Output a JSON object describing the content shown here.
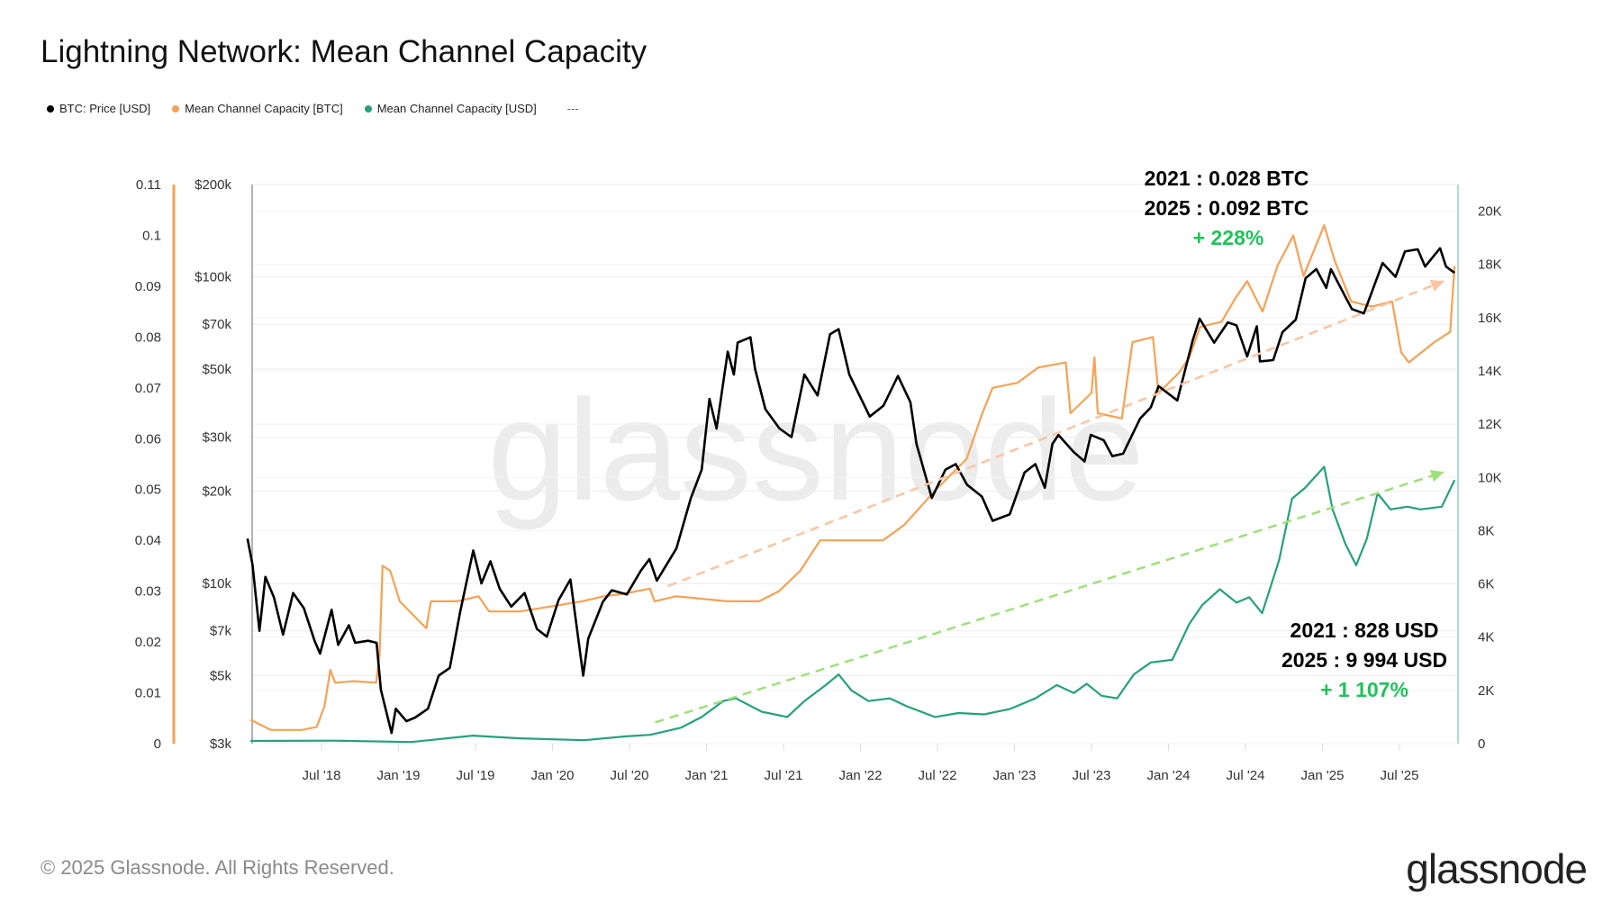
{
  "title": "Lightning Network: Mean Channel Capacity",
  "legend": [
    {
      "label": "BTC: Price [USD]",
      "color": "#000000"
    },
    {
      "label": "Mean Channel Capacity [BTC]",
      "color": "#f7931a"
    },
    {
      "label": "Mean Channel Capacity [USD]",
      "color": "#26a17b"
    },
    {
      "label": "---",
      "color": ""
    }
  ],
  "footer": "© 2025 Glassnode. All Rights Reserved.",
  "logo": "glassnode",
  "watermark": "glassnode",
  "annotations": {
    "btc_2021": "2021 : 0.028  BTC",
    "btc_2025": "2025 : 0.092 BTC",
    "btc_change": "+ 228%",
    "usd_2021": "2021 : 828 USD",
    "usd_2025": "2025 : 9 994 USD",
    "usd_change": "+ 1 107%",
    "change_color": "#1fc35a"
  },
  "chart_data": {
    "type": "line",
    "title": "Lightning Network: Mean Channel Capacity",
    "x_ticks": [
      "Jul '18",
      "Jan '19",
      "Jul '19",
      "Jan '20",
      "Jul '20",
      "Jan '21",
      "Jul '21",
      "Jan '22",
      "Jul '22",
      "Jan '23",
      "Jul '23",
      "Jan '24",
      "Jul '24",
      "Jan '25",
      "Jul '25"
    ],
    "axes": {
      "btc": {
        "ticks": [
          "0",
          "0.01",
          "0.02",
          "0.03",
          "0.04",
          "0.05",
          "0.06",
          "0.07",
          "0.08",
          "0.09",
          "0.1",
          "0.11"
        ],
        "ylim": [
          0,
          0.11
        ],
        "scale": "linear",
        "side": "left",
        "color": "#f7a154"
      },
      "price": {
        "ticks": [
          "$3k",
          "$5k",
          "$7k",
          "$10k",
          "$20k",
          "$30k",
          "$50k",
          "$70k",
          "$100k",
          "$200k"
        ],
        "tick_values": [
          3000,
          5000,
          7000,
          10000,
          20000,
          30000,
          50000,
          70000,
          100000,
          200000
        ],
        "ylim": [
          3000,
          200000
        ],
        "scale": "log",
        "side": "left"
      },
      "usd": {
        "ticks": [
          "0",
          "2K",
          "4K",
          "6K",
          "8K",
          "10K",
          "12K",
          "14K",
          "16K",
          "18K",
          "20K"
        ],
        "ylim": [
          0,
          21000
        ],
        "scale": "linear",
        "side": "right",
        "color": "#26a17b"
      }
    },
    "grid": true,
    "legend_position": "top-left",
    "series": [
      {
        "name": "BTC: Price [USD]",
        "axis": "price",
        "color": "#000000",
        "points": [
          [
            "2018-01-08",
            14000
          ],
          [
            "2018-01-20",
            11500
          ],
          [
            "2018-02-06",
            7000
          ],
          [
            "2018-02-20",
            10500
          ],
          [
            "2018-03-10",
            9000
          ],
          [
            "2018-04-01",
            6800
          ],
          [
            "2018-04-25",
            9300
          ],
          [
            "2018-05-20",
            8300
          ],
          [
            "2018-06-15",
            6500
          ],
          [
            "2018-06-28",
            5900
          ],
          [
            "2018-07-25",
            8200
          ],
          [
            "2018-08-10",
            6300
          ],
          [
            "2018-09-05",
            7300
          ],
          [
            "2018-09-20",
            6400
          ],
          [
            "2018-10-20",
            6500
          ],
          [
            "2018-11-10",
            6400
          ],
          [
            "2018-11-20",
            4500
          ],
          [
            "2018-12-15",
            3250
          ],
          [
            "2018-12-25",
            3900
          ],
          [
            "2019-01-20",
            3550
          ],
          [
            "2019-02-10",
            3650
          ],
          [
            "2019-03-10",
            3900
          ],
          [
            "2019-04-05",
            5000
          ],
          [
            "2019-05-01",
            5300
          ],
          [
            "2019-05-25",
            8000
          ],
          [
            "2019-06-26",
            12800
          ],
          [
            "2019-07-15",
            10000
          ],
          [
            "2019-08-06",
            11800
          ],
          [
            "2019-08-28",
            9600
          ],
          [
            "2019-09-25",
            8400
          ],
          [
            "2019-10-26",
            9300
          ],
          [
            "2019-11-25",
            7100
          ],
          [
            "2019-12-18",
            6700
          ],
          [
            "2020-01-15",
            8800
          ],
          [
            "2020-02-13",
            10300
          ],
          [
            "2020-03-13",
            5000
          ],
          [
            "2020-03-25",
            6600
          ],
          [
            "2020-04-29",
            8700
          ],
          [
            "2020-05-20",
            9500
          ],
          [
            "2020-06-25",
            9200
          ],
          [
            "2020-07-28",
            11000
          ],
          [
            "2020-08-18",
            12000
          ],
          [
            "2020-09-05",
            10200
          ],
          [
            "2020-10-21",
            13000
          ],
          [
            "2020-11-25",
            19000
          ],
          [
            "2020-12-20",
            23500
          ],
          [
            "2021-01-08",
            40000
          ],
          [
            "2021-01-25",
            32000
          ],
          [
            "2021-02-21",
            57000
          ],
          [
            "2021-03-05",
            48000
          ],
          [
            "2021-03-14",
            61000
          ],
          [
            "2021-04-14",
            63500
          ],
          [
            "2021-04-25",
            50000
          ],
          [
            "2021-05-19",
            37000
          ],
          [
            "2021-06-22",
            32000
          ],
          [
            "2021-07-20",
            30000
          ],
          [
            "2021-08-20",
            48000
          ],
          [
            "2021-09-21",
            41000
          ],
          [
            "2021-10-20",
            65000
          ],
          [
            "2021-11-10",
            67500
          ],
          [
            "2021-12-05",
            48000
          ],
          [
            "2022-01-23",
            35000
          ],
          [
            "2022-02-25",
            38000
          ],
          [
            "2022-03-29",
            47500
          ],
          [
            "2022-04-28",
            39000
          ],
          [
            "2022-05-12",
            28500
          ],
          [
            "2022-06-18",
            19000
          ],
          [
            "2022-07-20",
            23500
          ],
          [
            "2022-08-14",
            24500
          ],
          [
            "2022-09-10",
            21000
          ],
          [
            "2022-10-15",
            19200
          ],
          [
            "2022-11-10",
            16000
          ],
          [
            "2022-12-20",
            16800
          ],
          [
            "2023-01-25",
            23000
          ],
          [
            "2023-02-20",
            24500
          ],
          [
            "2023-03-12",
            20500
          ],
          [
            "2023-03-30",
            28500
          ],
          [
            "2023-04-14",
            30500
          ],
          [
            "2023-05-20",
            26800
          ],
          [
            "2023-06-15",
            25000
          ],
          [
            "2023-06-30",
            30500
          ],
          [
            "2023-07-30",
            29300
          ],
          [
            "2023-08-20",
            26000
          ],
          [
            "2023-09-15",
            26500
          ],
          [
            "2023-10-25",
            34500
          ],
          [
            "2023-11-20",
            37500
          ],
          [
            "2023-12-08",
            44000
          ],
          [
            "2024-01-22",
            39500
          ],
          [
            "2024-02-28",
            62000
          ],
          [
            "2024-03-14",
            73000
          ],
          [
            "2024-04-18",
            61000
          ],
          [
            "2024-05-20",
            71000
          ],
          [
            "2024-06-10",
            69500
          ],
          [
            "2024-07-05",
            55000
          ],
          [
            "2024-07-28",
            69000
          ],
          [
            "2024-08-05",
            53000
          ],
          [
            "2024-09-06",
            53500
          ],
          [
            "2024-09-28",
            66000
          ],
          [
            "2024-10-29",
            72500
          ],
          [
            "2024-11-22",
            99000
          ],
          [
            "2024-12-17",
            106000
          ],
          [
            "2025-01-10",
            92000
          ],
          [
            "2025-01-21",
            106000
          ],
          [
            "2025-02-25",
            86000
          ],
          [
            "2025-03-10",
            78500
          ],
          [
            "2025-04-08",
            76000
          ],
          [
            "2025-05-22",
            111000
          ],
          [
            "2025-06-22",
            100000
          ],
          [
            "2025-07-14",
            121000
          ],
          [
            "2025-08-14",
            123000
          ],
          [
            "2025-09-01",
            108000
          ],
          [
            "2025-10-06",
            124000
          ],
          [
            "2025-10-20",
            108000
          ],
          [
            "2025-11-10",
            103000
          ]
        ]
      },
      {
        "name": "Mean Channel Capacity [BTC]",
        "axis": "btc",
        "color": "#f7a154",
        "points": [
          [
            "2018-01-15",
            0.0047
          ],
          [
            "2018-03-03",
            0.0027
          ],
          [
            "2018-05-15",
            0.0027
          ],
          [
            "2018-06-20",
            0.0033
          ],
          [
            "2018-07-08",
            0.0074
          ],
          [
            "2018-07-22",
            0.0145
          ],
          [
            "2018-08-03",
            0.012
          ],
          [
            "2018-09-16",
            0.0123
          ],
          [
            "2018-11-09",
            0.012
          ],
          [
            "2018-11-17",
            0.0176
          ],
          [
            "2018-11-24",
            0.035
          ],
          [
            "2018-12-12",
            0.034
          ],
          [
            "2019-01-04",
            0.028
          ],
          [
            "2019-02-09",
            0.025
          ],
          [
            "2019-03-06",
            0.0227
          ],
          [
            "2019-03-17",
            0.028
          ],
          [
            "2019-05-19",
            0.028
          ],
          [
            "2019-07-08",
            0.029
          ],
          [
            "2019-08-03",
            0.026
          ],
          [
            "2019-10-15",
            0.026
          ],
          [
            "2019-12-28",
            0.027
          ],
          [
            "2020-03-10",
            0.028
          ],
          [
            "2020-05-01",
            0.029
          ],
          [
            "2020-06-18",
            0.0295
          ],
          [
            "2020-08-19",
            0.0305
          ],
          [
            "2020-08-30",
            0.028
          ],
          [
            "2020-10-20",
            0.029
          ],
          [
            "2021-02-20",
            0.028
          ],
          [
            "2021-05-04",
            0.028
          ],
          [
            "2021-06-21",
            0.03
          ],
          [
            "2021-08-10",
            0.034
          ],
          [
            "2021-09-27",
            0.04
          ],
          [
            "2021-12-13",
            0.04
          ],
          [
            "2022-02-24",
            0.04
          ],
          [
            "2022-04-13",
            0.043
          ],
          [
            "2022-06-28",
            0.05
          ],
          [
            "2022-09-09",
            0.056
          ],
          [
            "2022-10-16",
            0.065
          ],
          [
            "2022-11-10",
            0.07
          ],
          [
            "2023-01-08",
            0.071
          ],
          [
            "2023-02-27",
            0.074
          ],
          [
            "2023-05-01",
            0.075
          ],
          [
            "2023-05-12",
            0.065
          ],
          [
            "2023-07-01",
            0.069
          ],
          [
            "2023-07-08",
            0.076
          ],
          [
            "2023-07-16",
            0.065
          ],
          [
            "2023-09-12",
            0.064
          ],
          [
            "2023-10-07",
            0.079
          ],
          [
            "2023-11-25",
            0.08
          ],
          [
            "2023-12-08",
            0.069
          ],
          [
            "2024-01-26",
            0.073
          ],
          [
            "2024-02-20",
            0.076
          ],
          [
            "2024-03-15",
            0.082
          ],
          [
            "2024-05-05",
            0.083
          ],
          [
            "2024-06-10",
            0.088
          ],
          [
            "2024-07-05",
            0.091
          ],
          [
            "2024-08-11",
            0.085
          ],
          [
            "2024-09-16",
            0.094
          ],
          [
            "2024-10-23",
            0.1
          ],
          [
            "2024-11-17",
            0.092
          ],
          [
            "2025-01-05",
            0.102
          ],
          [
            "2025-01-30",
            0.095
          ],
          [
            "2025-03-08",
            0.087
          ],
          [
            "2025-04-27",
            0.086
          ],
          [
            "2025-06-14",
            0.087
          ],
          [
            "2025-07-05",
            0.077
          ],
          [
            "2025-07-23",
            0.075
          ],
          [
            "2025-09-23",
            0.079
          ],
          [
            "2025-10-30",
            0.081
          ],
          [
            "2025-11-10",
            0.094
          ]
        ]
      },
      {
        "name": "Mean Channel Capacity [USD]",
        "axis": "usd",
        "color": "#26a17b",
        "points": [
          [
            "2018-01-15",
            100
          ],
          [
            "2018-08-01",
            110
          ],
          [
            "2019-02-01",
            60
          ],
          [
            "2019-06-25",
            300
          ],
          [
            "2019-10-15",
            200
          ],
          [
            "2020-03-15",
            130
          ],
          [
            "2020-06-20",
            270
          ],
          [
            "2020-08-20",
            330
          ],
          [
            "2020-11-01",
            600
          ],
          [
            "2020-12-20",
            1000
          ],
          [
            "2021-02-10",
            1600
          ],
          [
            "2021-03-10",
            1700
          ],
          [
            "2021-05-10",
            1200
          ],
          [
            "2021-07-10",
            1000
          ],
          [
            "2021-08-20",
            1600
          ],
          [
            "2021-10-10",
            2200
          ],
          [
            "2021-11-10",
            2600
          ],
          [
            "2021-12-10",
            2000
          ],
          [
            "2022-01-20",
            1600
          ],
          [
            "2022-03-10",
            1700
          ],
          [
            "2022-04-20",
            1400
          ],
          [
            "2022-06-25",
            1000
          ],
          [
            "2022-08-20",
            1150
          ],
          [
            "2022-10-20",
            1100
          ],
          [
            "2022-12-20",
            1300
          ],
          [
            "2023-02-20",
            1700
          ],
          [
            "2023-04-10",
            2200
          ],
          [
            "2023-05-20",
            1900
          ],
          [
            "2023-06-20",
            2250
          ],
          [
            "2023-07-25",
            1800
          ],
          [
            "2023-09-01",
            1700
          ],
          [
            "2023-10-10",
            2600
          ],
          [
            "2023-11-20",
            3050
          ],
          [
            "2024-01-10",
            3150
          ],
          [
            "2024-02-20",
            4500
          ],
          [
            "2024-03-20",
            5200
          ],
          [
            "2024-05-01",
            5800
          ],
          [
            "2024-06-10",
            5300
          ],
          [
            "2024-07-10",
            5500
          ],
          [
            "2024-08-10",
            4900
          ],
          [
            "2024-09-20",
            6900
          ],
          [
            "2024-10-20",
            9200
          ],
          [
            "2024-11-20",
            9600
          ],
          [
            "2025-01-05",
            10400
          ],
          [
            "2025-01-25",
            8800
          ],
          [
            "2025-02-25",
            7500
          ],
          [
            "2025-03-20",
            6700
          ],
          [
            "2025-04-15",
            7700
          ],
          [
            "2025-05-10",
            9400
          ],
          [
            "2025-06-10",
            8800
          ],
          [
            "2025-07-20",
            8900
          ],
          [
            "2025-08-20",
            8800
          ],
          [
            "2025-10-10",
            8900
          ],
          [
            "2025-11-10",
            9900
          ]
        ]
      }
    ],
    "trend_arrows": [
      {
        "axis": "btc",
        "color": "#fbc4a0",
        "from": [
          "2020-10-01",
          0.031
        ],
        "to": [
          "2025-10-15",
          0.091
        ]
      },
      {
        "axis": "usd",
        "color": "#9ee07a",
        "from": [
          "2020-09-01",
          800
        ],
        "to": [
          "2025-10-15",
          10200
        ]
      }
    ]
  }
}
